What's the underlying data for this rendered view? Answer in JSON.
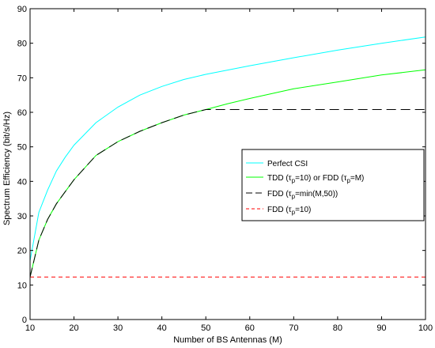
{
  "chart_data": {
    "type": "line",
    "title": "",
    "xlabel": "Number of BS Antennas (M)",
    "ylabel": "Spectrum Efficiency (bit/s/Hz)",
    "xlim": [
      10,
      100
    ],
    "ylim": [
      0,
      90
    ],
    "xticks": [
      10,
      20,
      30,
      40,
      50,
      60,
      70,
      80,
      90,
      100
    ],
    "yticks": [
      0,
      10,
      20,
      30,
      40,
      50,
      60,
      70,
      80,
      90
    ],
    "grid": false,
    "legend_position": "center-right",
    "series": [
      {
        "name": "Perfect CSI",
        "color": "#00ffff",
        "dash": "solid",
        "x": [
          10,
          12,
          14,
          16,
          18,
          20,
          25,
          30,
          35,
          40,
          45,
          50,
          60,
          70,
          80,
          90,
          100
        ],
        "y": [
          17,
          31,
          37.5,
          43,
          47,
          50.5,
          57,
          61.5,
          65,
          67.5,
          69.5,
          71,
          73.5,
          75.8,
          78,
          80,
          81.8
        ]
      },
      {
        "name": "TDD (τ_p=10) or FDD (τ_p=M)",
        "legend_main": "TDD (",
        "legend_sub1": "p",
        "legend_mid": "=10) or FDD (",
        "legend_sub2": "p",
        "legend_end": "=M)",
        "color": "#00ff00",
        "dash": "solid",
        "x": [
          10,
          12,
          14,
          16,
          18,
          20,
          25,
          30,
          35,
          40,
          45,
          50,
          55,
          60,
          70,
          80,
          90,
          100
        ],
        "y": [
          12.3,
          23,
          29,
          33.5,
          37,
          40.5,
          47.5,
          51.5,
          54.5,
          57,
          59.2,
          60.8,
          62.5,
          64,
          66.8,
          68.8,
          70.8,
          72.3
        ]
      },
      {
        "name": "FDD (τ_p=min(M,50))",
        "legend_main": "FDD (",
        "legend_sub1": "p",
        "legend_end": "=min(M,50))",
        "color": "#000000",
        "dash": "long-dash",
        "x": [
          10,
          12,
          14,
          16,
          18,
          20,
          25,
          30,
          35,
          40,
          45,
          50,
          60,
          70,
          80,
          90,
          100
        ],
        "y": [
          12.3,
          23,
          29,
          33.5,
          37,
          40.5,
          47.5,
          51.5,
          54.5,
          57,
          59.2,
          60.8,
          60.8,
          60.8,
          60.8,
          60.8,
          60.8
        ]
      },
      {
        "name": "FDD (τ_p=10)",
        "legend_main": "FDD (",
        "legend_sub1": "p",
        "legend_end": "=10)",
        "color": "#ff0000",
        "dash": "dashed",
        "x": [
          10,
          100
        ],
        "y": [
          12.3,
          12.3
        ]
      }
    ]
  }
}
